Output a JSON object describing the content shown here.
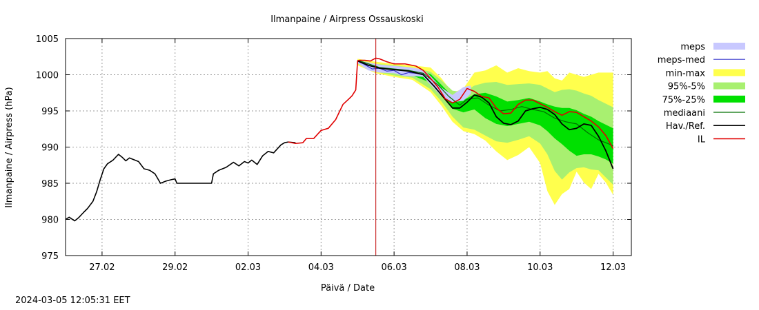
{
  "chart_data": {
    "type": "line",
    "title": "Ilmanpaine / Airpress Ossauskoski",
    "xlabel": "Päivä / Date",
    "ylabel": "Ilmanpaine / Airpress (hPa)",
    "ylim": [
      975,
      1005
    ],
    "yticks": [
      "975",
      "980",
      "985",
      "990",
      "995",
      "1000",
      "1005"
    ],
    "xlim": [
      0,
      15.5
    ],
    "xticks": [
      {
        "label": "27.02",
        "x": 1
      },
      {
        "label": "29.02",
        "x": 3
      },
      {
        "label": "02.03",
        "x": 5
      },
      {
        "label": "04.03",
        "x": 7
      },
      {
        "label": "06.03",
        "x": 9
      },
      {
        "label": "08.03",
        "x": 11
      },
      {
        "label": "10.03",
        "x": 13
      },
      {
        "label": "12.03",
        "x": 15
      }
    ],
    "grid": true,
    "legend_position": "right",
    "now_x": 8.5,
    "colors": {
      "meps": "#c8c8ff",
      "meps_med": "#3333cc",
      "minmax": "#ffff4d",
      "p95_5": "#a8f070",
      "p75_25": "#00e000",
      "mediaani": "#007000",
      "obs": "#000000",
      "il": "#e00000",
      "now_line": "#c00000",
      "grid": "#999999"
    },
    "legend": [
      {
        "label": "meps",
        "style": "fill",
        "color_key": "meps"
      },
      {
        "label": "meps-med",
        "style": "line",
        "color_key": "meps_med"
      },
      {
        "label": "min-max",
        "style": "fill",
        "color_key": "minmax"
      },
      {
        "label": "95%-5%",
        "style": "fill",
        "color_key": "p95_5"
      },
      {
        "label": "75%-25%",
        "style": "fill",
        "color_key": "p75_25"
      },
      {
        "label": "mediaani",
        "style": "line",
        "color_key": "mediaani"
      },
      {
        "label": "Hav./Ref.",
        "style": "line",
        "color_key": "obs"
      },
      {
        "label": "IL",
        "style": "line",
        "color_key": "il"
      }
    ],
    "series": [
      {
        "name": "Hav./Ref.",
        "x": [
          0,
          0.1,
          0.25,
          0.35,
          0.5,
          0.6,
          0.75,
          0.85,
          0.95,
          1.05,
          1.15,
          1.3,
          1.45,
          1.55,
          1.65,
          1.75,
          1.85,
          2.0,
          2.15,
          2.3,
          2.45,
          2.6,
          2.75,
          2.9,
          3.0,
          3.05,
          3.1,
          3.15,
          4.0,
          4.05,
          4.2,
          4.4,
          4.6,
          4.75,
          4.9,
          5.0,
          5.1,
          5.25,
          5.4,
          5.55,
          5.7,
          5.9,
          6.0,
          6.1,
          6.3
        ],
        "y": [
          980,
          980.3,
          979.8,
          980.2,
          981,
          981.5,
          982.5,
          983.8,
          985.5,
          987,
          987.7,
          988.2,
          989,
          988.6,
          988.1,
          988.5,
          988.3,
          988,
          987,
          986.8,
          986.3,
          985,
          985.3,
          985.5,
          985.6,
          985,
          985,
          985,
          985,
          986.3,
          986.8,
          987.2,
          987.9,
          987.4,
          988,
          987.8,
          988.2,
          987.6,
          988.8,
          989.4,
          989.2,
          990.3,
          990.6,
          990.7,
          990.6
        ]
      },
      {
        "name": "IL",
        "x": [
          6.1,
          6.3,
          6.5,
          6.6,
          6.8,
          7.0,
          7.2,
          7.4,
          7.6,
          7.75,
          7.85,
          7.95,
          8.0,
          8.05,
          8.2,
          8.35,
          8.5,
          8.6,
          8.8,
          9.0,
          9.3,
          9.6,
          9.8,
          10.0,
          10.2,
          10.4,
          10.6,
          10.8,
          11.0,
          11.2,
          11.4,
          11.6,
          11.8,
          12.0,
          12.2,
          12.4,
          12.6,
          12.8,
          13.0,
          13.2,
          13.4,
          13.6,
          13.8,
          14.0,
          14.2,
          14.4,
          14.6,
          14.8,
          15.0
        ],
        "y": [
          990.7,
          990.5,
          990.6,
          991.2,
          991.2,
          992.3,
          992.6,
          993.8,
          995.9,
          996.6,
          997.1,
          997.9,
          1001.9,
          1002,
          1002,
          1001.9,
          1002.3,
          1002.2,
          1001.8,
          1001.5,
          1001.5,
          1001.2,
          1000.6,
          999.5,
          998.3,
          996.7,
          996.1,
          996.6,
          998.1,
          997.7,
          997,
          996.8,
          995.4,
          994.6,
          994.7,
          995.9,
          996.5,
          996.5,
          996,
          995.5,
          994.9,
          994.4,
          994.9,
          994.8,
          994.2,
          993.6,
          992.8,
          991.6,
          989.8
        ]
      },
      {
        "name": "mediaani",
        "x": [
          8.0,
          8.3,
          8.6,
          9.0,
          9.4,
          9.8,
          10.2,
          10.5,
          10.8,
          11.0,
          11.3,
          11.6,
          11.9,
          12.2,
          12.5,
          12.8,
          13.1,
          13.4,
          13.7,
          14.0,
          14.3,
          14.6,
          14.8,
          15.0
        ],
        "y": [
          1002,
          1001.5,
          1001,
          1000.8,
          1000.6,
          1000.2,
          998.6,
          997,
          995.8,
          996.6,
          996.8,
          995.8,
          995,
          995.2,
          995.6,
          995.2,
          994.9,
          994,
          993.5,
          993.2,
          992,
          991,
          990.6,
          990.2
        ]
      },
      {
        "name": "meps-med",
        "x": [
          8.0,
          8.2,
          8.4,
          8.6,
          8.8,
          9.0,
          9.2,
          9.4,
          9.6,
          9.8
        ],
        "y": [
          1001.9,
          1001.4,
          1000.8,
          1000.9,
          1000.5,
          1000.6,
          1000,
          1000.3,
          1000.2,
          1000.1
        ]
      },
      {
        "name": "meps",
        "x": [
          8.0,
          8.3,
          8.6,
          9.0,
          9.3,
          9.6,
          9.8,
          10.0,
          10.3,
          10.6,
          10.9,
          11.1
        ],
        "lo": [
          1001.6,
          1000.6,
          1000.3,
          1000.2,
          999.8,
          999.8,
          999.7,
          998.6,
          997,
          996.2,
          996.4,
          997.4
        ],
        "hi": [
          1002,
          1001.7,
          1001.4,
          1001.2,
          1001.1,
          1000.9,
          1000.7,
          999.8,
          998.2,
          997.2,
          998.3,
          998.5
        ]
      },
      {
        "name": "min-max",
        "x": [
          8.0,
          8.5,
          9.0,
          9.5,
          10.0,
          10.3,
          10.6,
          10.9,
          11.2,
          11.5,
          11.8,
          12.1,
          12.4,
          12.7,
          13.0,
          13.2,
          13.4,
          13.6,
          13.8,
          14.0,
          14.2,
          14.4,
          14.6,
          14.8,
          15.0
        ],
        "lo": [
          1001.3,
          1000.2,
          999.7,
          999.3,
          997.6,
          995.7,
          993.5,
          992.2,
          991.8,
          990.9,
          989.4,
          988.2,
          988.9,
          990,
          987.8,
          983.9,
          982,
          983.5,
          984.2,
          986.6,
          985.1,
          984.2,
          986.3,
          985.1,
          983.4
        ],
        "hi": [
          1002.2,
          1001.8,
          1001.5,
          1001.3,
          1001,
          999.5,
          997.5,
          998.1,
          1000.3,
          1000.6,
          1001.3,
          1000.3,
          1000.9,
          1000.5,
          1000.3,
          1000.5,
          999.5,
          999.2,
          1000.3,
          1000,
          999.7,
          1000,
          1000.3,
          1000.3,
          1000.3
        ]
      },
      {
        "name": "95%-5%",
        "x": [
          8.0,
          8.5,
          9.0,
          9.5,
          10.0,
          10.3,
          10.6,
          10.9,
          11.2,
          11.5,
          11.8,
          12.1,
          12.4,
          12.7,
          13.0,
          13.2,
          13.4,
          13.6,
          13.8,
          14.0,
          14.2,
          14.4,
          14.6,
          14.8,
          15.0
        ],
        "lo": [
          1001.5,
          1000.4,
          999.9,
          999.6,
          998,
          996.3,
          994.2,
          992.7,
          992.4,
          991.6,
          990.8,
          990.6,
          991,
          991.5,
          990.5,
          989,
          986.7,
          985.5,
          986.5,
          987.1,
          987.2,
          986.9,
          986.8,
          985.8,
          984.8
        ],
        "hi": [
          1002,
          1001.5,
          1001.3,
          1001,
          1000.4,
          999.2,
          997.8,
          997.6,
          998.5,
          998.9,
          999,
          998.6,
          998.7,
          998.8,
          998.6,
          998.1,
          997.6,
          997.9,
          998,
          997.8,
          997.4,
          997.1,
          996.5,
          996,
          995.5
        ]
      },
      {
        "name": "75%-25%",
        "x": [
          8.0,
          8.5,
          9.0,
          9.5,
          10.0,
          10.3,
          10.6,
          10.9,
          11.2,
          11.5,
          11.8,
          12.1,
          12.4,
          12.7,
          13.0,
          13.2,
          13.4,
          13.6,
          13.8,
          14.0,
          14.2,
          14.4,
          14.6,
          14.8,
          15.0
        ],
        "lo": [
          1001.7,
          1000.8,
          1000.3,
          999.9,
          998.9,
          997.2,
          995.3,
          994.8,
          995.2,
          994,
          993.2,
          992.9,
          993.2,
          993.5,
          993,
          992.2,
          991.2,
          990.4,
          989.5,
          988.8,
          989,
          989,
          988.7,
          988.3,
          987.7
        ],
        "hi": [
          1001.9,
          1001.3,
          1001.1,
          1000.8,
          1000.1,
          998.6,
          997,
          996.5,
          997.3,
          997.5,
          997,
          996.3,
          996.5,
          996.8,
          996.3,
          995.9,
          995.6,
          995.4,
          995.4,
          995.1,
          994.6,
          994.2,
          993.6,
          993.1,
          992.6
        ]
      },
      {
        "name": "Hav./Ref. forecast",
        "x": [
          8.0,
          8.3,
          8.6,
          9.0,
          9.4,
          9.8,
          10.1,
          10.4,
          10.6,
          10.8,
          11.0,
          11.2,
          11.4,
          11.6,
          11.8,
          12.0,
          12.2,
          12.4,
          12.6,
          12.8,
          13.0,
          13.2,
          13.4,
          13.6,
          13.8,
          14.0,
          14.2,
          14.4,
          14.6,
          14.8,
          15.0
        ],
        "y": [
          1001.9,
          1001.3,
          1000.9,
          1000.7,
          1000.5,
          1000,
          998.4,
          996.6,
          995.4,
          995.4,
          996.2,
          997.2,
          996.9,
          996.1,
          994.2,
          993.3,
          993.1,
          993.6,
          995,
          995.3,
          995.5,
          995.2,
          994.5,
          993.2,
          992.4,
          992.6,
          993.2,
          993,
          991.5,
          989.5,
          987
        ]
      }
    ]
  },
  "footer": {
    "timestamp": "2024-03-05 12:05:31 EET"
  }
}
